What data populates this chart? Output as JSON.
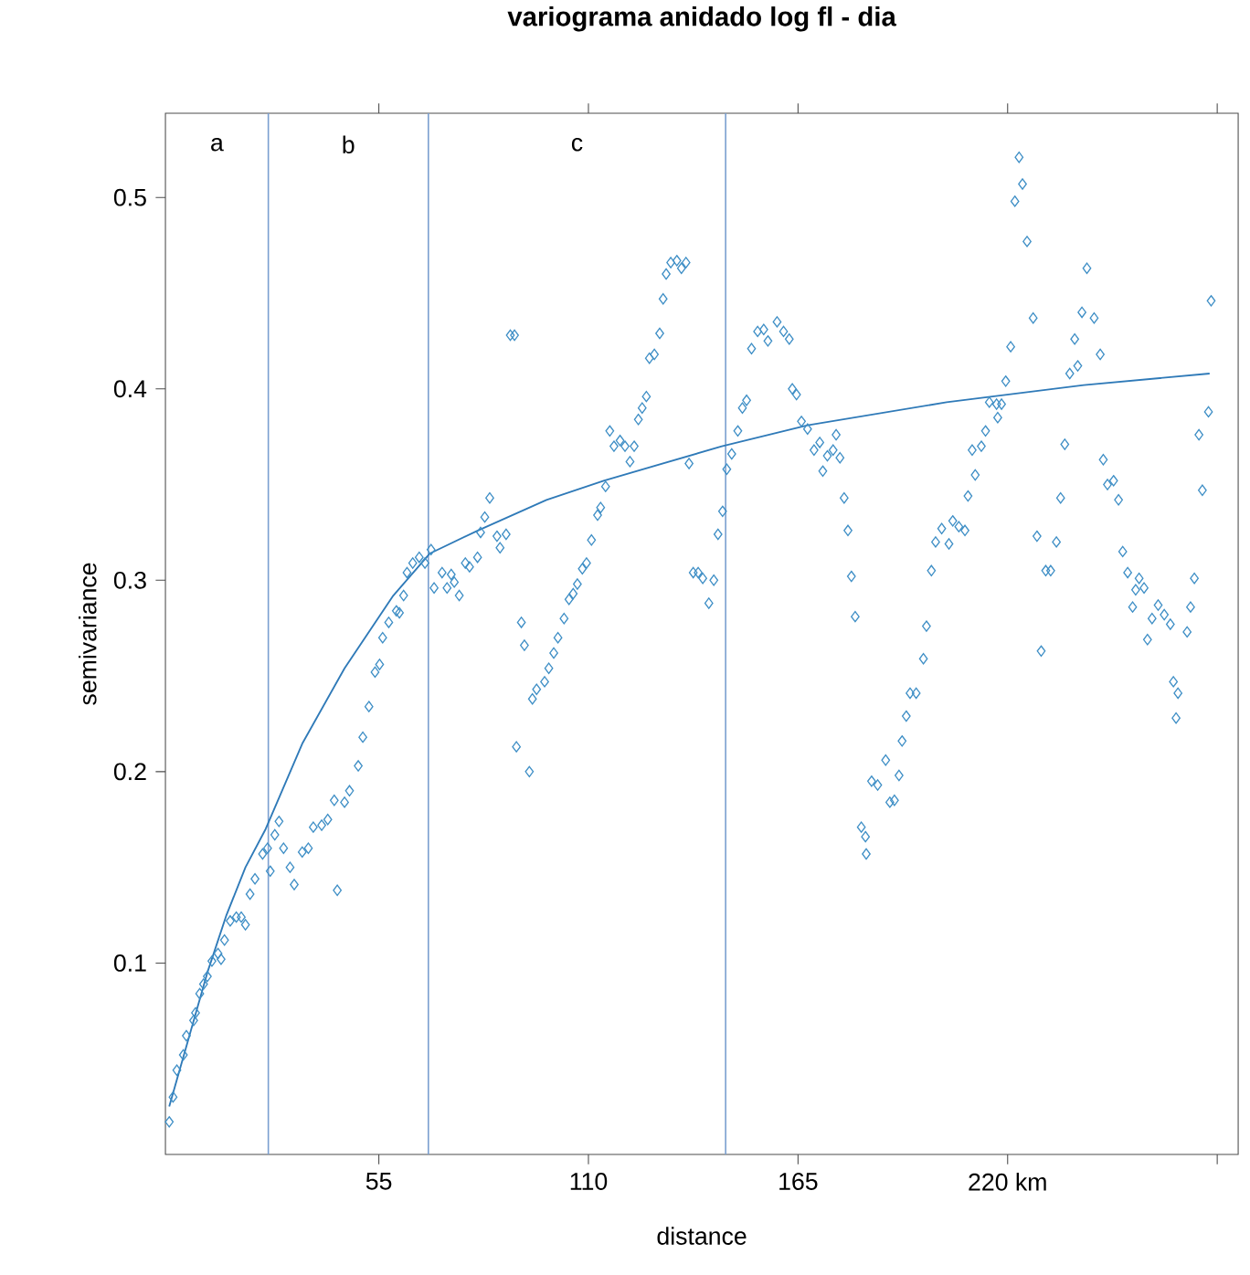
{
  "chart_data": {
    "type": "scatter",
    "title": "variograma anidado log fl - dia",
    "xlabel": "distance",
    "ylabel": "semivariance",
    "xlim": [
      -1,
      280.5
    ],
    "ylim": [
      0,
      0.544
    ],
    "xticks": [
      55,
      110,
      165,
      {
        "value": 220,
        "label": "220  km"
      },
      {
        "value": 275,
        "label": null
      }
    ],
    "yticks": [
      0.1,
      0.2,
      0.3,
      0.4,
      0.5
    ],
    "grid": false,
    "ref_lines": [
      {
        "axis": "x",
        "value": 26,
        "color": "#7a9fd0"
      },
      {
        "axis": "x",
        "value": 68,
        "color": "#7a9fd0"
      },
      {
        "axis": "x",
        "value": 146,
        "color": "#7a9fd0"
      }
    ],
    "annotations": [
      "a",
      "b",
      "c"
    ],
    "series": [
      {
        "marker": "diamond",
        "color": "#3f8fc6",
        "x": [
          0,
          1,
          2,
          3.7,
          4.5,
          6.4,
          6.9,
          8,
          9,
          10,
          11.2,
          12.8,
          13.6,
          14.5,
          16,
          17.6,
          18.9,
          20,
          21.2,
          22.5,
          24.5,
          25.8,
          26.5,
          27.7,
          28.8,
          30,
          31.7,
          32.8,
          34.9,
          36.5,
          37.8,
          40,
          41.6,
          43.3,
          44.1,
          46,
          47.3,
          49.6,
          50.8,
          52.4,
          54,
          55.2,
          56,
          57.6,
          59.6,
          60.4,
          61.5,
          62.4,
          63.9,
          65.6,
          67.1,
          68.7,
          69.5,
          71.6,
          72.9,
          74,
          74.8,
          76.1,
          77.7,
          78.8,
          80.9,
          81.7,
          82.8,
          84.1,
          86,
          86.8,
          88.4,
          89.5,
          90.6,
          91.1,
          92.4,
          93.2,
          94.5,
          95.3,
          96.4,
          98.5,
          99.6,
          100.9,
          102,
          103.6,
          104.9,
          106,
          107.1,
          108.4,
          109.5,
          110.8,
          112.4,
          113.2,
          114.5,
          115.6,
          116.7,
          118.3,
          119.6,
          120.9,
          122,
          123.1,
          124.1,
          125.2,
          126,
          127.3,
          128.7,
          129.6,
          130.4,
          131.6,
          133.2,
          134.4,
          135.6,
          136.4,
          137.5,
          138.8,
          140,
          141.6,
          142.9,
          144,
          145.2,
          146.3,
          147.6,
          149.2,
          150.4,
          151.5,
          152.8,
          154.4,
          156,
          157.1,
          159.5,
          161.2,
          162.7,
          163.5,
          164.6,
          165.9,
          167.5,
          169.2,
          170.7,
          171.5,
          172.7,
          174.2,
          175,
          176,
          177.1,
          178.1,
          179,
          180,
          181.6,
          182.7,
          182.9,
          184.3,
          185.9,
          188,
          189.1,
          190.3,
          191.5,
          192.3,
          193.4,
          194.4,
          196,
          197.9,
          198.7,
          200,
          201.1,
          202.7,
          204.6,
          205.6,
          207.2,
          208.8,
          209.6,
          210.7,
          211.5,
          213.1,
          214.2,
          215.2,
          217.1,
          217.4,
          218.4,
          219.5,
          220.8,
          221.9,
          223,
          223.9,
          225.1,
          226.7,
          227.7,
          228.8,
          230,
          231.3,
          232.8,
          233.9,
          235,
          236.3,
          237.6,
          238.4,
          239.5,
          240.8,
          242.7,
          244.3,
          245.1,
          246.2,
          247.8,
          249.1,
          250.2,
          251.5,
          252.8,
          253.6,
          254.5,
          255.8,
          256.7,
          257.9,
          259.5,
          261.1,
          262.7,
          263.5,
          264.2,
          264.7,
          267.1,
          268,
          269,
          270.2,
          271.1,
          272.7,
          273.4
        ],
        "values": [
          0.017,
          0.03,
          0.044,
          0.052,
          0.062,
          0.07,
          0.074,
          0.084,
          0.089,
          0.093,
          0.101,
          0.105,
          0.102,
          0.112,
          0.122,
          0.124,
          0.124,
          0.12,
          0.136,
          0.144,
          0.157,
          0.16,
          0.148,
          0.167,
          0.174,
          0.16,
          0.15,
          0.141,
          0.158,
          0.16,
          0.171,
          0.172,
          0.175,
          0.185,
          0.138,
          0.184,
          0.19,
          0.203,
          0.218,
          0.234,
          0.252,
          0.256,
          0.27,
          0.278,
          0.284,
          0.283,
          0.292,
          0.304,
          0.309,
          0.312,
          0.309,
          0.316,
          0.296,
          0.304,
          0.296,
          0.303,
          0.299,
          0.292,
          0.309,
          0.307,
          0.312,
          0.325,
          0.333,
          0.343,
          0.323,
          0.317,
          0.324,
          0.428,
          0.428,
          0.213,
          0.278,
          0.266,
          0.2,
          0.238,
          0.243,
          0.247,
          0.254,
          0.262,
          0.27,
          0.28,
          0.29,
          0.293,
          0.298,
          0.306,
          0.309,
          0.321,
          0.334,
          0.338,
          0.349,
          0.378,
          0.37,
          0.373,
          0.37,
          0.362,
          0.37,
          0.384,
          0.39,
          0.396,
          0.416,
          0.418,
          0.429,
          0.447,
          0.46,
          0.466,
          0.467,
          0.463,
          0.466,
          0.361,
          0.304,
          0.304,
          0.301,
          0.288,
          0.3,
          0.324,
          0.336,
          0.358,
          0.366,
          0.378,
          0.39,
          0.394,
          0.421,
          0.43,
          0.431,
          0.425,
          0.435,
          0.43,
          0.426,
          0.4,
          0.397,
          0.383,
          0.379,
          0.368,
          0.372,
          0.357,
          0.365,
          0.368,
          0.376,
          0.364,
          0.343,
          0.326,
          0.302,
          0.281,
          0.171,
          0.166,
          0.157,
          0.195,
          0.193,
          0.206,
          0.184,
          0.185,
          0.198,
          0.216,
          0.229,
          0.241,
          0.241,
          0.259,
          0.276,
          0.305,
          0.32,
          0.327,
          0.319,
          0.331,
          0.328,
          0.326,
          0.344,
          0.368,
          0.355,
          0.37,
          0.378,
          0.393,
          0.392,
          0.385,
          0.392,
          0.404,
          0.422,
          0.498,
          0.521,
          0.507,
          0.477,
          0.437,
          0.323,
          0.263,
          0.305,
          0.305,
          0.32,
          0.343,
          0.371,
          0.408,
          0.426,
          0.412,
          0.44,
          0.463,
          0.437,
          0.418,
          0.363,
          0.35,
          0.352,
          0.342,
          0.315,
          0.304,
          0.286,
          0.295,
          0.301,
          0.296,
          0.269,
          0.28,
          0.287,
          0.282,
          0.277,
          0.247,
          0.228,
          0.241,
          0.273,
          0.286,
          0.301,
          0.376,
          0.347,
          0.388,
          0.446
        ]
      },
      {
        "type": "line",
        "marker": "none",
        "color": "#2f7ab8",
        "line_style": "solid",
        "x": [
          0,
          5,
          10,
          15,
          20,
          25.3,
          35,
          46,
          58.8,
          68.4,
          81,
          99,
          114,
          145,
          167.5,
          204,
          240,
          273
        ],
        "values": [
          0.025,
          0.06,
          0.095,
          0.125,
          0.15,
          0.17,
          0.215,
          0.254,
          0.292,
          0.314,
          0.326,
          0.342,
          0.352,
          0.37,
          0.381,
          0.393,
          0.402,
          0.408
        ]
      }
    ]
  }
}
